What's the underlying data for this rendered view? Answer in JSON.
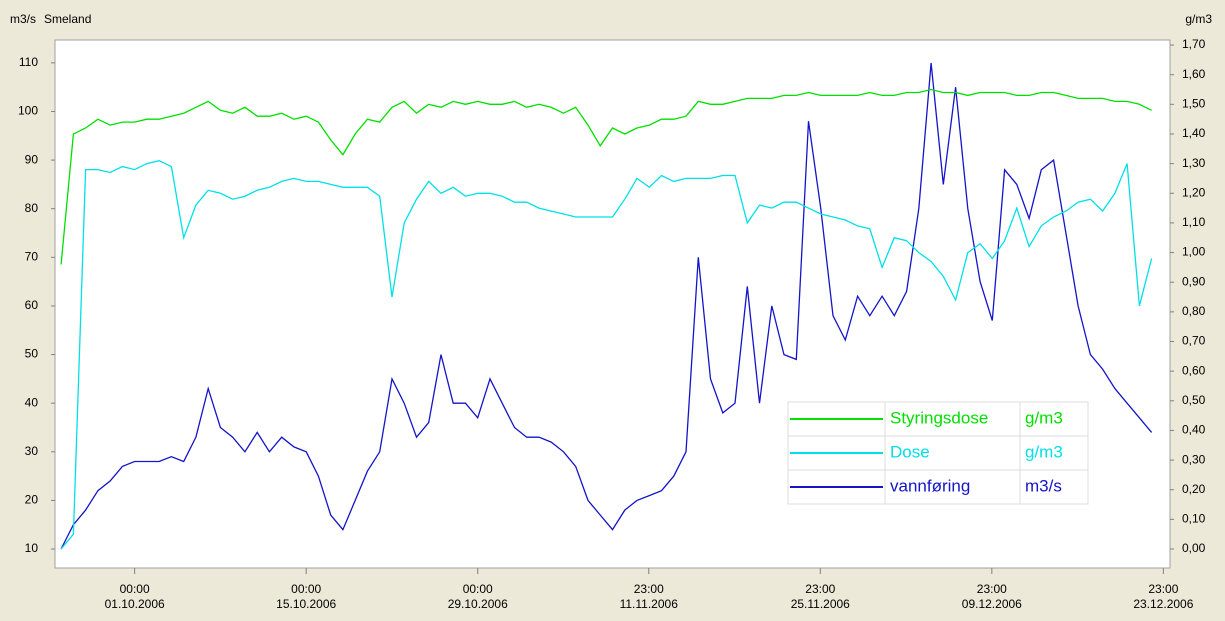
{
  "chart_data": {
    "type": "line",
    "title": "Smeland",
    "ylabel": "m3/s",
    "y2label": "g/m3",
    "legend": "lower right",
    "xlim": [
      "2006-09-24T12:00",
      "2006-12-24T12:00"
    ],
    "xticks": [
      {
        "value": "2006-10-01T00:00",
        "label": [
          "00:00",
          "01.10.2006"
        ]
      },
      {
        "value": "2006-10-15T00:00",
        "label": [
          "00:00",
          "15.10.2006"
        ]
      },
      {
        "value": "2006-10-29T00:00",
        "label": [
          "00:00",
          "29.10.2006"
        ]
      },
      {
        "value": "2006-11-11T23:00",
        "label": [
          "23:00",
          "11.11.2006"
        ]
      },
      {
        "value": "2006-11-25T23:00",
        "label": [
          "23:00",
          "25.11.2006"
        ]
      },
      {
        "value": "2006-12-09T23:00",
        "label": [
          "23:00",
          "09.12.2006"
        ]
      },
      {
        "value": "2006-12-23T23:00",
        "label": [
          "23:00",
          "23.12.2006"
        ]
      }
    ],
    "ylim": [
      6.1,
      114.7
    ],
    "yticks": [
      10,
      20,
      30,
      40,
      50,
      60,
      70,
      80,
      90,
      100,
      110
    ],
    "y2lim": [
      -0.064,
      1.717
    ],
    "y2ticks": [
      {
        "value": 0,
        "label": "0,00"
      },
      {
        "value": 0.1,
        "label": "0,10"
      },
      {
        "value": 0.2,
        "label": "0,20"
      },
      {
        "value": 0.3,
        "label": "0,30"
      },
      {
        "value": 0.4,
        "label": "0,40"
      },
      {
        "value": 0.5,
        "label": "0,50"
      },
      {
        "value": 0.6,
        "label": "0,60"
      },
      {
        "value": 0.7,
        "label": "0,70"
      },
      {
        "value": 0.8,
        "label": "0,80"
      },
      {
        "value": 0.9,
        "label": "0,90"
      },
      {
        "value": 1.0,
        "label": "1,00"
      },
      {
        "value": 1.1,
        "label": "1,10"
      },
      {
        "value": 1.2,
        "label": "1,20"
      },
      {
        "value": 1.3,
        "label": "1,30"
      },
      {
        "value": 1.4,
        "label": "1,40"
      },
      {
        "value": 1.5,
        "label": "1,50"
      },
      {
        "value": 1.6,
        "label": "1,60"
      },
      {
        "value": 1.7,
        "label": "1,70"
      }
    ],
    "x": [
      "2006-09-25",
      "2006-09-26",
      "2006-09-27",
      "2006-09-28",
      "2006-09-29",
      "2006-09-30",
      "2006-10-01",
      "2006-10-02",
      "2006-10-03",
      "2006-10-04",
      "2006-10-05",
      "2006-10-06",
      "2006-10-07",
      "2006-10-08",
      "2006-10-09",
      "2006-10-10",
      "2006-10-11",
      "2006-10-12",
      "2006-10-13",
      "2006-10-14",
      "2006-10-15",
      "2006-10-16",
      "2006-10-17",
      "2006-10-18",
      "2006-10-19",
      "2006-10-20",
      "2006-10-21",
      "2006-10-22",
      "2006-10-23",
      "2006-10-24",
      "2006-10-25",
      "2006-10-26",
      "2006-10-27",
      "2006-10-28",
      "2006-10-29",
      "2006-10-30",
      "2006-10-31",
      "2006-11-01",
      "2006-11-02",
      "2006-11-03",
      "2006-11-04",
      "2006-11-05",
      "2006-11-06",
      "2006-11-07",
      "2006-11-08",
      "2006-11-09",
      "2006-11-10",
      "2006-11-11",
      "2006-11-12",
      "2006-11-13",
      "2006-11-14",
      "2006-11-15",
      "2006-11-16",
      "2006-11-17",
      "2006-11-18",
      "2006-11-19",
      "2006-11-20",
      "2006-11-21",
      "2006-11-22",
      "2006-11-23",
      "2006-11-24",
      "2006-11-25",
      "2006-11-26",
      "2006-11-27",
      "2006-11-28",
      "2006-11-29",
      "2006-11-30",
      "2006-12-01",
      "2006-12-02",
      "2006-12-03",
      "2006-12-04",
      "2006-12-05",
      "2006-12-06",
      "2006-12-07",
      "2006-12-08",
      "2006-12-09",
      "2006-12-10",
      "2006-12-11",
      "2006-12-12",
      "2006-12-13",
      "2006-12-14",
      "2006-12-15",
      "2006-12-16",
      "2006-12-17",
      "2006-12-18",
      "2006-12-19",
      "2006-12-20",
      "2006-12-21",
      "2006-12-22",
      "2006-12-23"
    ],
    "series": [
      {
        "name": "Styringsdose",
        "unit": "g/m3",
        "color": "#00e000",
        "axis": "y2",
        "values": [
          0.96,
          1.4,
          1.42,
          1.45,
          1.43,
          1.44,
          1.44,
          1.45,
          1.45,
          1.46,
          1.47,
          1.49,
          1.51,
          1.48,
          1.47,
          1.49,
          1.46,
          1.46,
          1.47,
          1.45,
          1.46,
          1.44,
          1.38,
          1.33,
          1.4,
          1.45,
          1.44,
          1.49,
          1.51,
          1.47,
          1.5,
          1.49,
          1.51,
          1.5,
          1.51,
          1.5,
          1.5,
          1.51,
          1.49,
          1.5,
          1.49,
          1.47,
          1.49,
          1.43,
          1.36,
          1.42,
          1.4,
          1.42,
          1.43,
          1.45,
          1.45,
          1.46,
          1.51,
          1.5,
          1.5,
          1.51,
          1.52,
          1.52,
          1.52,
          1.53,
          1.53,
          1.54,
          1.53,
          1.53,
          1.53,
          1.53,
          1.54,
          1.53,
          1.53,
          1.54,
          1.54,
          1.55,
          1.54,
          1.54,
          1.53,
          1.54,
          1.54,
          1.54,
          1.53,
          1.53,
          1.54,
          1.54,
          1.53,
          1.52,
          1.52,
          1.52,
          1.51,
          1.51,
          1.5,
          1.48
        ]
      },
      {
        "name": "Dose",
        "unit": "g/m3",
        "color": "#00e0e8",
        "axis": "y2",
        "values": [
          0.0,
          0.05,
          1.28,
          1.28,
          1.27,
          1.29,
          1.28,
          1.3,
          1.31,
          1.29,
          1.05,
          1.16,
          1.21,
          1.2,
          1.18,
          1.19,
          1.21,
          1.22,
          1.24,
          1.25,
          1.24,
          1.24,
          1.23,
          1.22,
          1.22,
          1.22,
          1.19,
          0.85,
          1.1,
          1.18,
          1.24,
          1.2,
          1.22,
          1.19,
          1.2,
          1.2,
          1.19,
          1.17,
          1.17,
          1.15,
          1.14,
          1.13,
          1.12,
          1.12,
          1.12,
          1.12,
          1.18,
          1.25,
          1.22,
          1.26,
          1.24,
          1.25,
          1.25,
          1.25,
          1.26,
          1.26,
          1.1,
          1.16,
          1.15,
          1.17,
          1.17,
          1.15,
          1.13,
          1.12,
          1.11,
          1.09,
          1.08,
          0.95,
          1.05,
          1.04,
          1.0,
          0.97,
          0.92,
          0.84,
          1.0,
          1.03,
          0.98,
          1.04,
          1.15,
          1.02,
          1.09,
          1.12,
          1.14,
          1.17,
          1.18,
          1.14,
          1.2,
          1.3,
          0.82,
          0.98
        ]
      },
      {
        "name": "vannføring",
        "unit": "m3/s",
        "color": "#1414c8",
        "values": [
          10,
          15,
          18,
          22,
          24,
          27,
          28,
          28,
          28,
          29,
          28,
          33,
          43,
          35,
          33,
          30,
          34,
          30,
          33,
          31,
          30,
          25,
          17,
          14,
          20,
          26,
          30,
          45,
          40,
          33,
          36,
          50,
          40,
          40,
          37,
          45,
          40,
          35,
          33,
          33,
          32,
          30,
          27,
          20,
          17,
          14,
          18,
          20,
          21,
          22,
          25,
          30,
          70,
          45,
          38,
          40,
          64,
          40,
          60,
          50,
          49,
          98,
          80,
          58,
          53,
          62,
          58,
          62,
          58,
          63,
          80,
          110,
          85,
          105,
          80,
          65,
          57,
          88,
          85,
          78,
          88,
          90,
          75,
          60,
          50,
          47,
          43,
          40,
          37,
          34
        ]
      }
    ]
  }
}
